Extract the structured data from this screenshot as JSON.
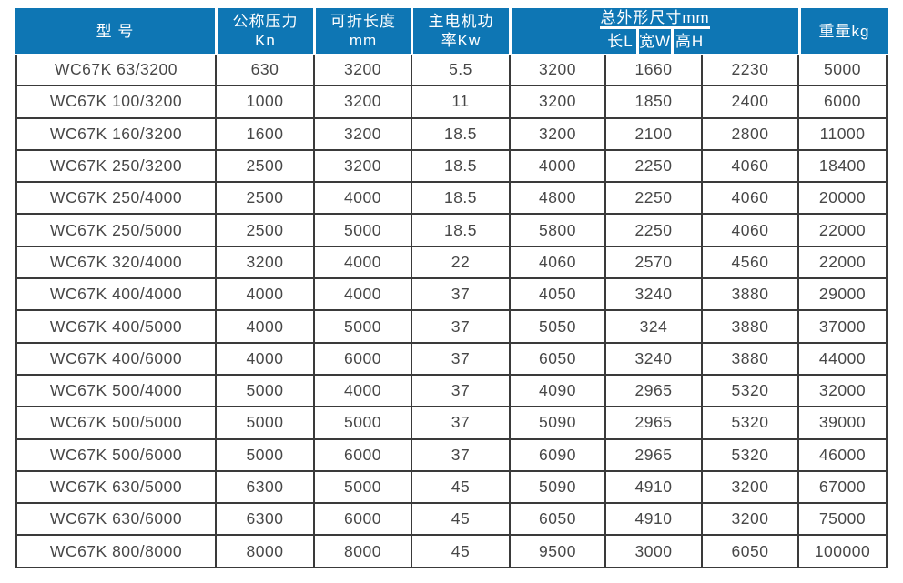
{
  "colors": {
    "header_bg": "#0e76b4",
    "header_text": "#ffffff",
    "body_text": "#474747",
    "grid_line": "#3a3a3a"
  },
  "table": {
    "header": {
      "model": "型 号",
      "pressure_line1": "公称压力",
      "pressure_line2": "Kn",
      "length_line1": "可折长度",
      "length_line2": "mm",
      "power_line1": "主电机功",
      "power_line2": "率Kw",
      "dimensions": "总外形尺寸mm",
      "dim_length": "长L",
      "dim_width": "宽W",
      "dim_height": "高H",
      "weight": "重量kg"
    },
    "rows": [
      [
        "WC67K 63/3200",
        "630",
        "3200",
        "5.5",
        "3200",
        "1660",
        "2230",
        "5000"
      ],
      [
        "WC67K 100/3200",
        "1000",
        "3200",
        "11",
        "3200",
        "1850",
        "2400",
        "6000"
      ],
      [
        "WC67K 160/3200",
        "1600",
        "3200",
        "18.5",
        "3200",
        "2100",
        "2800",
        "11000"
      ],
      [
        "WC67K 250/3200",
        "2500",
        "3200",
        "18.5",
        "4000",
        "2250",
        "4060",
        "18400"
      ],
      [
        "WC67K 250/4000",
        "2500",
        "4000",
        "18.5",
        "4800",
        "2250",
        "4060",
        "20000"
      ],
      [
        "WC67K 250/5000",
        "2500",
        "5000",
        "18.5",
        "5800",
        "2250",
        "4060",
        "22000"
      ],
      [
        "WC67K 320/4000",
        "3200",
        "4000",
        "22",
        "4060",
        "2570",
        "4560",
        "22000"
      ],
      [
        "WC67K 400/4000",
        "4000",
        "4000",
        "37",
        "4050",
        "3240",
        "3880",
        "29000"
      ],
      [
        "WC67K 400/5000",
        "4000",
        "5000",
        "37",
        "5050",
        "324",
        "3880",
        "37000"
      ],
      [
        "WC67K 400/6000",
        "4000",
        "6000",
        "37",
        "6050",
        "3240",
        "3880",
        "44000"
      ],
      [
        "WC67K 500/4000",
        "5000",
        "4000",
        "37",
        "4090",
        "2965",
        "5320",
        "32000"
      ],
      [
        "WC67K 500/5000",
        "5000",
        "5000",
        "37",
        "5090",
        "2965",
        "5320",
        "39000"
      ],
      [
        "WC67K 500/6000",
        "5000",
        "6000",
        "37",
        "6090",
        "2965",
        "5320",
        "46000"
      ],
      [
        "WC67K 630/5000",
        "6300",
        "5000",
        "45",
        "5090",
        "4910",
        "3200",
        "67000"
      ],
      [
        "WC67K 630/6000",
        "6300",
        "6000",
        "45",
        "6050",
        "4910",
        "3200",
        "75000"
      ],
      [
        "WC67K 800/8000",
        "8000",
        "8000",
        "45",
        "9500",
        "3000",
        "6050",
        "100000"
      ]
    ]
  }
}
